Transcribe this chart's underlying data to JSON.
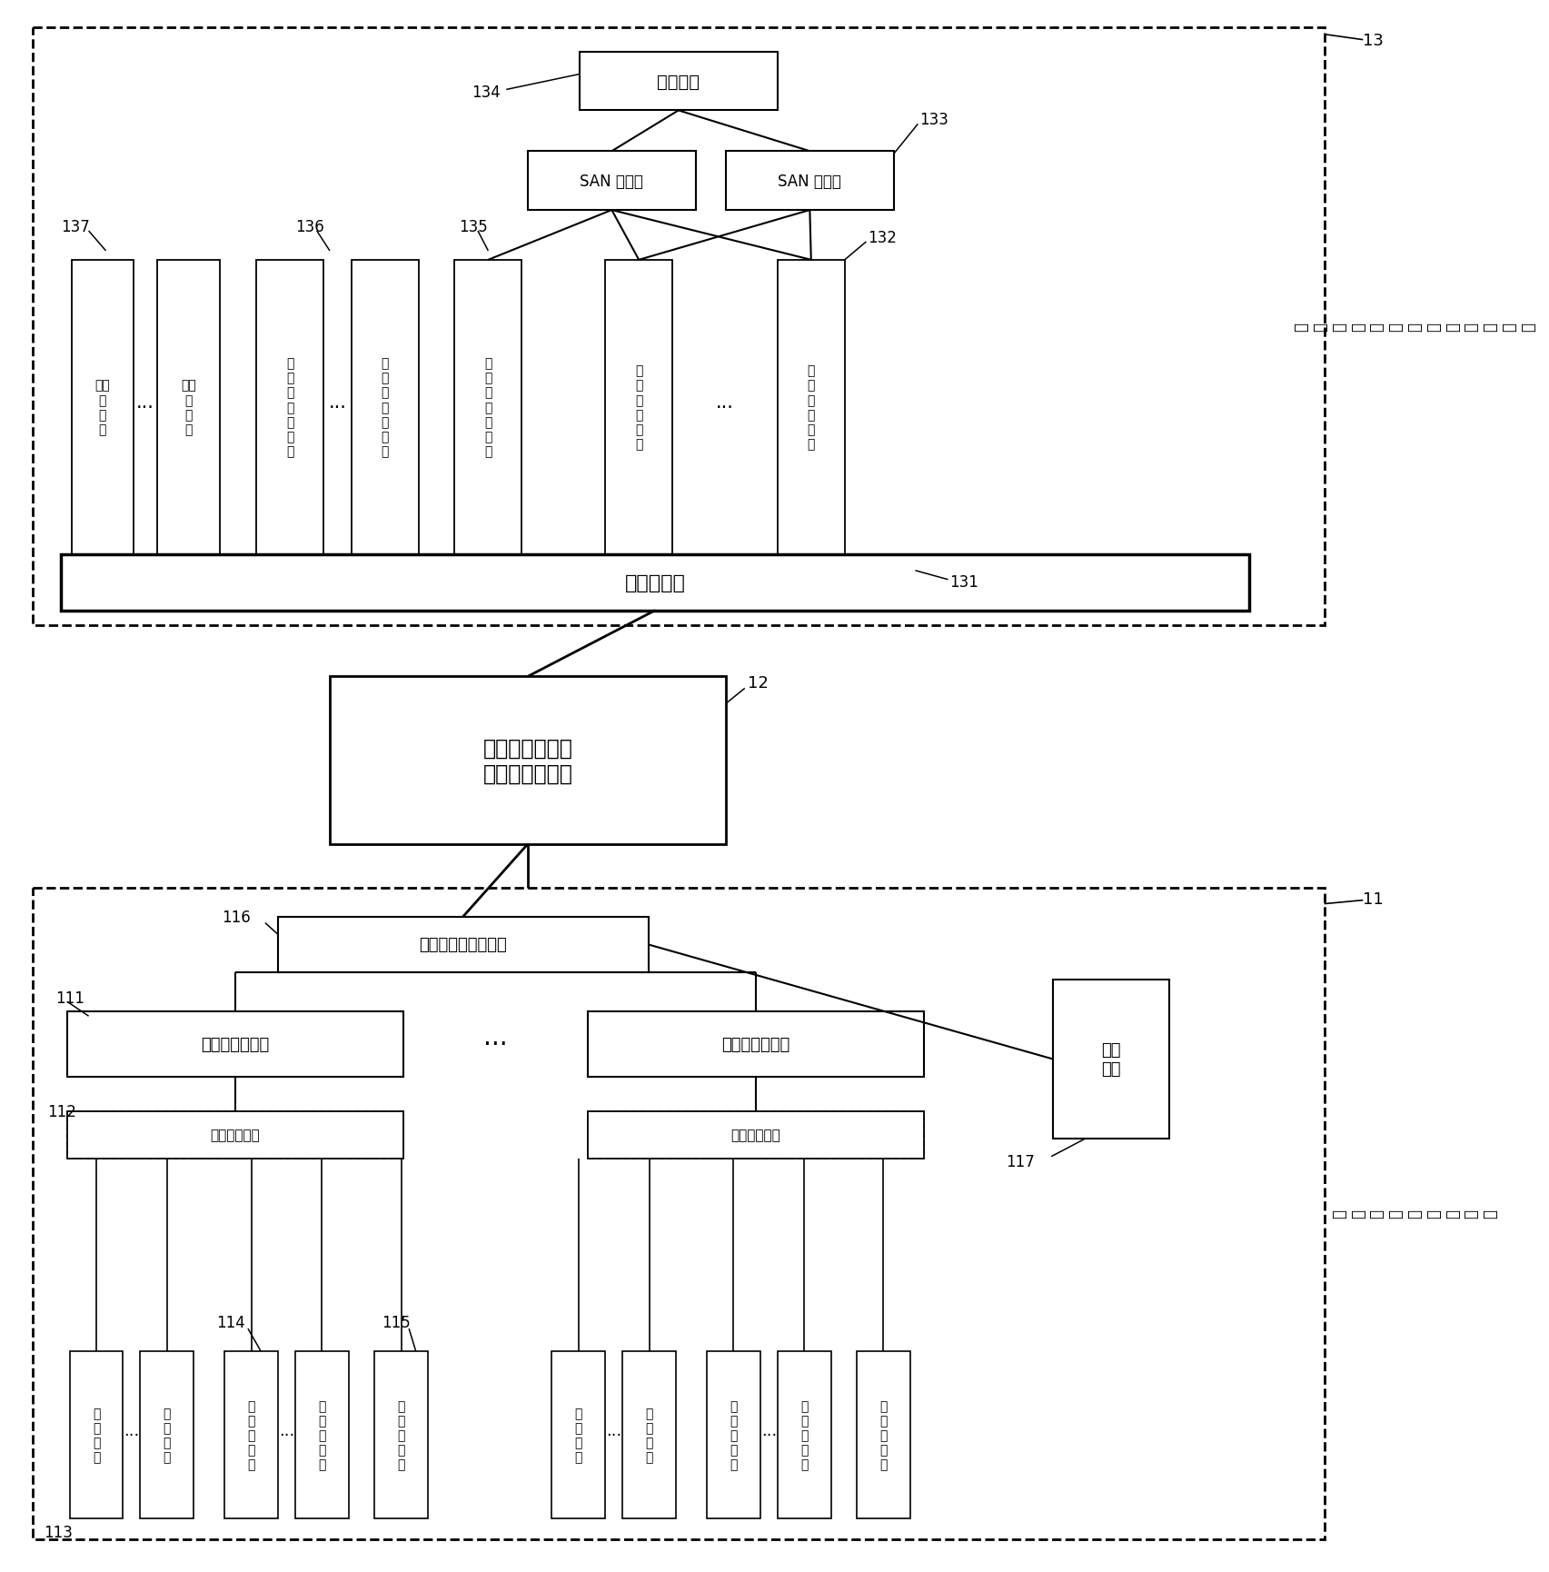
{
  "fig_width": 17.05,
  "fig_height": 17.31,
  "bg_color": "#ffffff",
  "box_disk_array": "磁盘阵列",
  "box_san1": "SAN 交换机",
  "box_san2": "SAN 交换机",
  "label_13": "13",
  "label_12": "12",
  "label_11": "11",
  "label_134": "134",
  "label_133": "133",
  "label_136": "136",
  "label_137": "137",
  "label_135": "135",
  "label_132": "132",
  "label_131": "131",
  "label_116": "116",
  "label_111": "111",
  "label_117": "117",
  "label_112": "112",
  "label_113": "113",
  "label_114": "114",
  "label_115": "115",
  "box_jizhuji": "计算\n机\n终\n端",
  "box_shujuyingyong": "数\n据\n应\n用\n服\n务\n器",
  "box_shujuchuanshu": "数\n据\n传\n输\n服\n务\n器",
  "box_shujuku": "数\n据\n库\n服\n务\n器",
  "box_zhuganjiaohuan": "主干交换机",
  "box_lubiantongxin": "路边通信子系统",
  "box_lubiantongxin2": "（光纤通信网）",
  "box_duoduan": "多端口以太网光端机",
  "box_chepai": "车牌识别控制器",
  "box_gonadian": "供电\n单元",
  "box_cheliangjiancedanyuan": "车辆检测单元",
  "box_huanxing": "环\n形\n线\n圈",
  "box_zhuapai": "抹\n牌\n摄\n像\n机",
  "box_quanjing": "全\n景\n摄\n像\n机",
  "side_label_car": "车\n牌\n识\n别\n采\n集\n处\n理\n平\n台\n子\n系\n统",
  "side_label_road": "路\n边\n数\n据\n采\n集\n子\n系\n统"
}
